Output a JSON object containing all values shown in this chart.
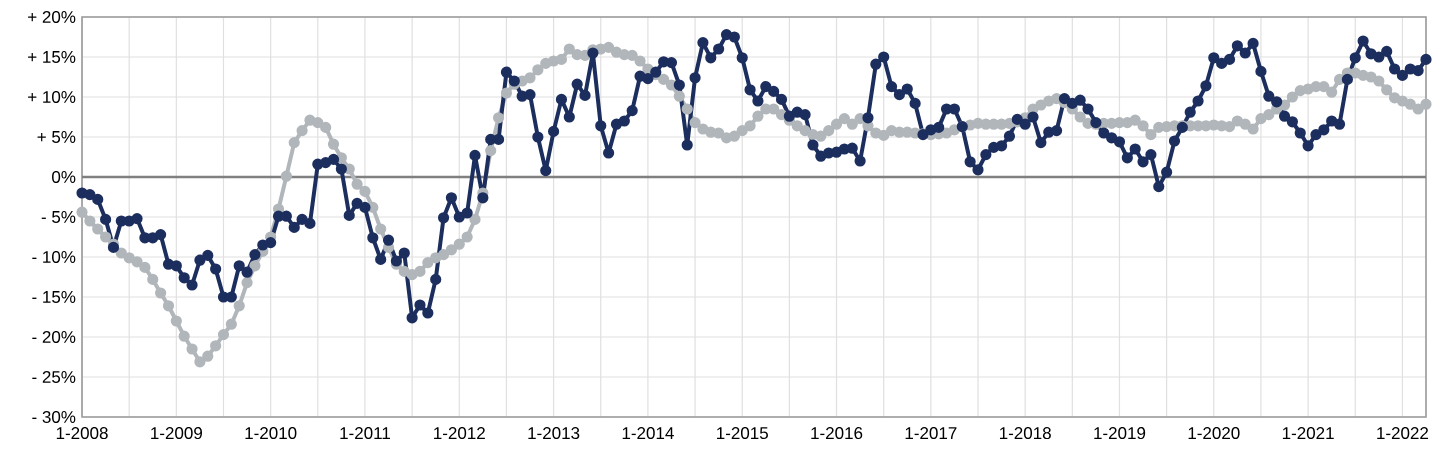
{
  "chart_data": {
    "type": "line",
    "x": [
      "2008-01",
      "2008-02",
      "2008-03",
      "2008-04",
      "2008-05",
      "2008-06",
      "2008-07",
      "2008-08",
      "2008-09",
      "2008-10",
      "2008-11",
      "2008-12",
      "2009-01",
      "2009-02",
      "2009-03",
      "2009-04",
      "2009-05",
      "2009-06",
      "2009-07",
      "2009-08",
      "2009-09",
      "2009-10",
      "2009-11",
      "2009-12",
      "2010-01",
      "2010-02",
      "2010-03",
      "2010-04",
      "2010-05",
      "2010-06",
      "2010-07",
      "2010-08",
      "2010-09",
      "2010-10",
      "2010-11",
      "2010-12",
      "2011-01",
      "2011-02",
      "2011-03",
      "2011-04",
      "2011-05",
      "2011-06",
      "2011-07",
      "2011-08",
      "2011-09",
      "2011-10",
      "2011-11",
      "2011-12",
      "2012-01",
      "2012-02",
      "2012-03",
      "2012-04",
      "2012-05",
      "2012-06",
      "2012-07",
      "2012-08",
      "2012-09",
      "2012-10",
      "2012-11",
      "2012-12",
      "2013-01",
      "2013-02",
      "2013-03",
      "2013-04",
      "2013-05",
      "2013-06",
      "2013-07",
      "2013-08",
      "2013-09",
      "2013-10",
      "2013-11",
      "2013-12",
      "2014-01",
      "2014-02",
      "2014-03",
      "2014-04",
      "2014-05",
      "2014-06",
      "2014-07",
      "2014-08",
      "2014-09",
      "2014-10",
      "2014-11",
      "2014-12",
      "2015-01",
      "2015-02",
      "2015-03",
      "2015-04",
      "2015-05",
      "2015-06",
      "2015-07",
      "2015-08",
      "2015-09",
      "2015-10",
      "2015-11",
      "2015-12",
      "2016-01",
      "2016-02",
      "2016-03",
      "2016-04",
      "2016-05",
      "2016-06",
      "2016-07",
      "2016-08",
      "2016-09",
      "2016-10",
      "2016-11",
      "2016-12",
      "2017-01",
      "2017-02",
      "2017-03",
      "2017-04",
      "2017-05",
      "2017-06",
      "2017-07",
      "2017-08",
      "2017-09",
      "2017-10",
      "2017-11",
      "2017-12",
      "2018-01",
      "2018-02",
      "2018-03",
      "2018-04",
      "2018-05",
      "2018-06",
      "2018-07",
      "2018-08",
      "2018-09",
      "2018-10",
      "2018-11",
      "2018-12",
      "2019-01",
      "2019-02",
      "2019-03",
      "2019-04",
      "2019-05",
      "2019-06",
      "2019-07",
      "2019-08",
      "2019-09",
      "2019-10",
      "2019-11",
      "2019-12",
      "2020-01",
      "2020-02",
      "2020-03",
      "2020-04",
      "2020-05",
      "2020-06",
      "2020-07",
      "2020-08",
      "2020-09",
      "2020-10",
      "2020-11",
      "2020-12",
      "2021-01",
      "2021-02",
      "2021-03",
      "2021-04",
      "2021-05",
      "2021-06",
      "2021-07",
      "2021-08",
      "2021-09",
      "2021-10",
      "2021-11",
      "2021-12",
      "2022-01",
      "2022-02",
      "2022-03",
      "2022-04"
    ],
    "series": [
      {
        "color": "#b1b6bb",
        "values": [
          -4.4,
          -5.5,
          -6.5,
          -7.5,
          -8.4,
          -9.5,
          -10.1,
          -10.6,
          -11.3,
          -12.8,
          -14.5,
          -16.1,
          -18.0,
          -19.9,
          -21.5,
          -23.1,
          -22.4,
          -21.1,
          -19.7,
          -18.4,
          -16.1,
          -13.2,
          -11.1,
          -9.3,
          -7.5,
          -4.0,
          0.1,
          4.3,
          5.8,
          7.1,
          6.8,
          6.2,
          4.1,
          2.4,
          1.0,
          -0.9,
          -1.8,
          -3.8,
          -6.5,
          -8.8,
          -10.9,
          -11.8,
          -12.2,
          -11.8,
          -10.7,
          -10.1,
          -9.7,
          -9.1,
          -8.4,
          -7.5,
          -5.3,
          -2.0,
          3.3,
          7.4,
          10.5,
          11.6,
          12.0,
          12.4,
          13.4,
          14.2,
          14.5,
          14.7,
          16.0,
          15.3,
          15.2,
          15.9,
          16.0,
          16.2,
          15.6,
          15.3,
          15.2,
          14.5,
          13.5,
          12.8,
          12.2,
          11.5,
          10.1,
          8.5,
          6.8,
          6.0,
          5.6,
          5.5,
          4.9,
          5.1,
          5.8,
          6.4,
          7.6,
          8.5,
          8.5,
          7.8,
          7.1,
          6.4,
          5.8,
          5.3,
          5.1,
          5.8,
          6.6,
          7.3,
          6.6,
          7.3,
          6.4,
          5.5,
          5.2,
          5.8,
          5.6,
          5.6,
          5.5,
          5.4,
          5.3,
          5.4,
          5.5,
          5.9,
          6.3,
          6.5,
          6.7,
          6.6,
          6.6,
          6.6,
          6.7,
          6.9,
          7.4,
          8.5,
          9.0,
          9.5,
          9.8,
          9.3,
          8.5,
          7.5,
          6.7,
          6.6,
          6.7,
          6.7,
          6.8,
          6.8,
          7.1,
          6.4,
          5.3,
          6.2,
          6.3,
          6.4,
          6.4,
          6.4,
          6.4,
          6.4,
          6.5,
          6.4,
          6.3,
          7.0,
          6.6,
          6.0,
          7.3,
          7.8,
          8.5,
          9.0,
          10.0,
          10.8,
          11.0,
          11.3,
          11.3,
          10.6,
          12.2,
          13.0,
          13.0,
          12.7,
          12.5,
          12.0,
          10.9,
          9.9,
          9.5,
          9.1,
          8.5,
          9.1
        ]
      },
      {
        "color": "#1c2e5e",
        "values": [
          -2.0,
          -2.2,
          -2.8,
          -5.3,
          -8.8,
          -5.5,
          -5.5,
          -5.2,
          -7.6,
          -7.6,
          -7.2,
          -10.9,
          -11.1,
          -12.6,
          -13.5,
          -10.4,
          -9.8,
          -11.5,
          -15.0,
          -15.0,
          -11.1,
          -11.9,
          -9.7,
          -8.5,
          -8.2,
          -4.9,
          -4.9,
          -6.3,
          -5.3,
          -5.8,
          1.6,
          1.8,
          2.2,
          1.0,
          -4.8,
          -3.3,
          -3.8,
          -7.6,
          -10.3,
          -7.9,
          -10.5,
          -9.5,
          -17.6,
          -16.0,
          -17.0,
          -12.8,
          -5.1,
          -2.6,
          -5.0,
          -4.5,
          2.7,
          -2.6,
          4.7,
          4.7,
          13.1,
          12.0,
          10.1,
          10.3,
          5.0,
          0.8,
          5.7,
          9.7,
          7.5,
          11.6,
          10.2,
          15.5,
          6.4,
          3.0,
          6.6,
          7.0,
          8.3,
          12.6,
          12.3,
          13.1,
          14.4,
          14.3,
          11.5,
          4.0,
          12.4,
          16.8,
          14.9,
          16.0,
          17.8,
          17.5,
          14.9,
          10.9,
          9.5,
          11.3,
          10.7,
          9.7,
          7.6,
          8.1,
          7.8,
          4.0,
          2.6,
          3.0,
          3.1,
          3.5,
          3.6,
          2.0,
          7.4,
          14.1,
          15.0,
          11.3,
          10.3,
          11.0,
          9.2,
          5.3,
          5.9,
          6.2,
          8.5,
          8.5,
          6.3,
          1.9,
          0.9,
          2.8,
          3.7,
          3.9,
          5.1,
          7.2,
          6.6,
          7.5,
          4.3,
          5.6,
          5.8,
          9.8,
          9.2,
          9.6,
          8.5,
          6.8,
          5.5,
          4.9,
          4.4,
          2.4,
          3.5,
          1.9,
          2.8,
          -1.2,
          0.6,
          4.5,
          6.2,
          8.1,
          9.5,
          11.4,
          14.9,
          14.2,
          14.7,
          16.4,
          15.5,
          16.7,
          13.2,
          10.1,
          9.4,
          7.6,
          6.9,
          5.5,
          3.9,
          5.3,
          5.9,
          7.0,
          6.6,
          12.2,
          14.9,
          17.0,
          15.4,
          15.0,
          15.7,
          13.5,
          12.7,
          13.5,
          13.3,
          14.7
        ]
      }
    ],
    "xlim": [
      "2008-01",
      "2022-04"
    ],
    "xticks": [
      {
        "value": "2008-01",
        "label": "1-2008"
      },
      {
        "value": "2008-07",
        "label": null
      },
      {
        "value": "2009-01",
        "label": "1-2009"
      },
      {
        "value": "2009-07",
        "label": null
      },
      {
        "value": "2010-01",
        "label": "1-2010"
      },
      {
        "value": "2010-07",
        "label": null
      },
      {
        "value": "2011-01",
        "label": "1-2011"
      },
      {
        "value": "2011-07",
        "label": null
      },
      {
        "value": "2012-01",
        "label": "1-2012"
      },
      {
        "value": "2012-07",
        "label": null
      },
      {
        "value": "2013-01",
        "label": "1-2013"
      },
      {
        "value": "2013-07",
        "label": null
      },
      {
        "value": "2014-01",
        "label": "1-2014"
      },
      {
        "value": "2014-07",
        "label": null
      },
      {
        "value": "2015-01",
        "label": "1-2015"
      },
      {
        "value": "2015-07",
        "label": null
      },
      {
        "value": "2016-01",
        "label": "1-2016"
      },
      {
        "value": "2016-07",
        "label": null
      },
      {
        "value": "2017-01",
        "label": "1-2017"
      },
      {
        "value": "2017-07",
        "label": null
      },
      {
        "value": "2018-01",
        "label": "1-2018"
      },
      {
        "value": "2018-07",
        "label": null
      },
      {
        "value": "2019-01",
        "label": "1-2019"
      },
      {
        "value": "2019-07",
        "label": null
      },
      {
        "value": "2020-01",
        "label": "1-2020"
      },
      {
        "value": "2020-07",
        "label": null
      },
      {
        "value": "2021-01",
        "label": "1-2021"
      },
      {
        "value": "2021-07",
        "label": null
      },
      {
        "value": "2022-01",
        "label": "1-2022"
      }
    ],
    "ylim": [
      -30,
      20
    ],
    "yticks": [
      {
        "value": -30,
        "label": "- 30%"
      },
      {
        "value": -25,
        "label": "- 25%"
      },
      {
        "value": -20,
        "label": "- 20%"
      },
      {
        "value": -15,
        "label": "- 15%"
      },
      {
        "value": -10,
        "label": "- 10%"
      },
      {
        "value": -5,
        "label": "- 5%"
      },
      {
        "value": 0,
        "label": "0%"
      },
      {
        "value": 5,
        "label": "+ 5%"
      },
      {
        "value": 10,
        "label": "+ 10%"
      },
      {
        "value": 15,
        "label": "+ 15%"
      },
      {
        "value": 20,
        "label": "+ 20%"
      }
    ],
    "ref_lines": [
      {
        "axis": "y",
        "value": 0,
        "color": "#808080"
      }
    ],
    "grid": true,
    "marker": "circle",
    "line_style": "solid"
  }
}
